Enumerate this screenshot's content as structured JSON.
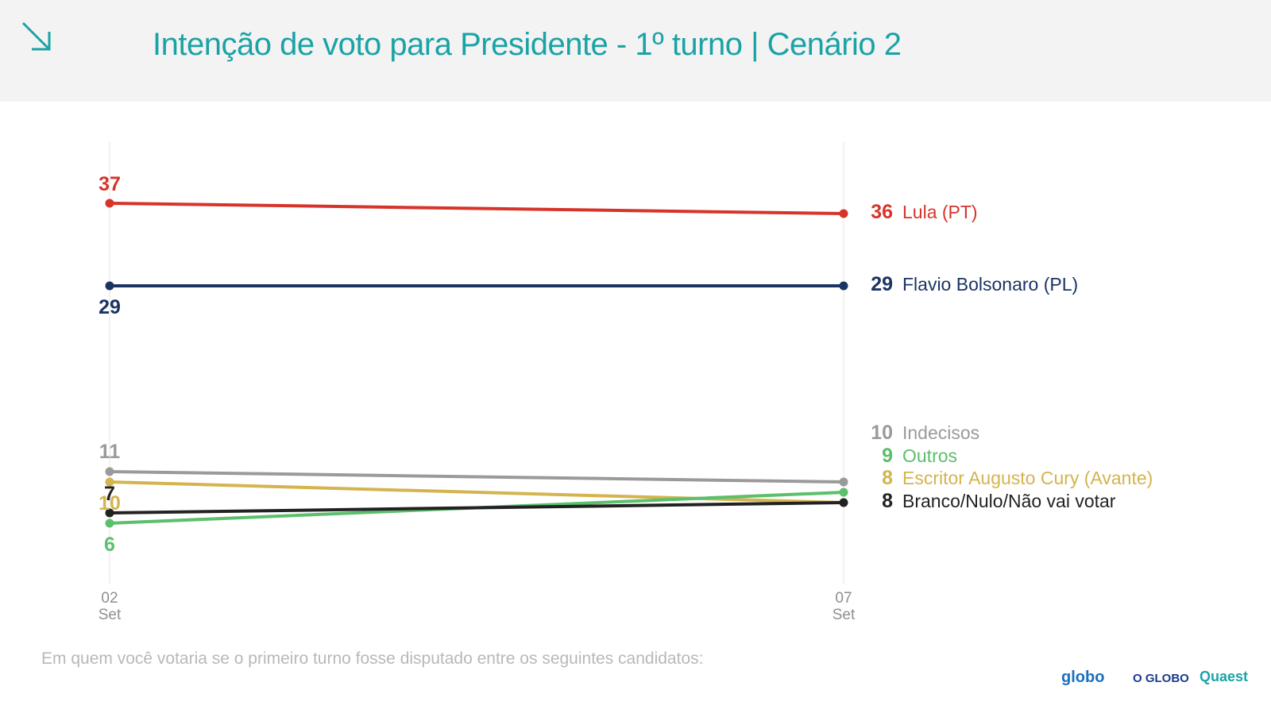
{
  "header": {
    "title": "Intenção de voto para Presidente - 1º turno | Cenário 2",
    "icon": "arrow-down-right-icon"
  },
  "footer": {
    "question": "Em quem você votaria se o primeiro turno fosse disputado entre os seguintes candidatos:",
    "logos": {
      "globo": "globo",
      "oglobo": "O GLOBO",
      "quaest": "Quaest"
    }
  },
  "chart_data": {
    "type": "line",
    "x": [
      {
        "day": "02",
        "month": "Set"
      },
      {
        "day": "07",
        "month": "Set"
      }
    ],
    "ylim": [
      0,
      45
    ],
    "grid": "vertical lines at each date",
    "legend": "right, labels at line end",
    "series": [
      {
        "name": "Lula (PT)",
        "values": [
          37,
          36
        ],
        "color": "#d6342a",
        "start_label": "37",
        "end_label": "36",
        "start_label_pos": "above",
        "legend_bold": false
      },
      {
        "name": "Flavio Bolsonaro (PL)",
        "values": [
          29,
          29
        ],
        "color": "#1b3464",
        "start_label": "29",
        "end_label": "29",
        "start_label_pos": "below",
        "legend_bold": false
      },
      {
        "name": "Indecisos",
        "values": [
          11,
          10
        ],
        "color": "#9a9a9a",
        "start_label": "11",
        "end_label": "10",
        "start_label_pos": "above",
        "legend_bold": false
      },
      {
        "name": "Outros",
        "values": [
          6,
          9
        ],
        "color": "#5cbf6b",
        "start_label": "6",
        "end_label": "9",
        "start_label_pos": "below",
        "legend_bold": false
      },
      {
        "name": "Escritor Augusto Cury (Avante)",
        "values": [
          10,
          8
        ],
        "color": "#d4b44e",
        "start_label": "10",
        "end_label": "8",
        "start_label_pos": "below",
        "legend_bold": false
      },
      {
        "name": "Branco/Nulo/Não vai votar",
        "values": [
          7,
          8
        ],
        "color": "#222222",
        "start_label": "7",
        "end_label": "8",
        "start_label_pos": "above",
        "legend_bold": false
      }
    ]
  }
}
